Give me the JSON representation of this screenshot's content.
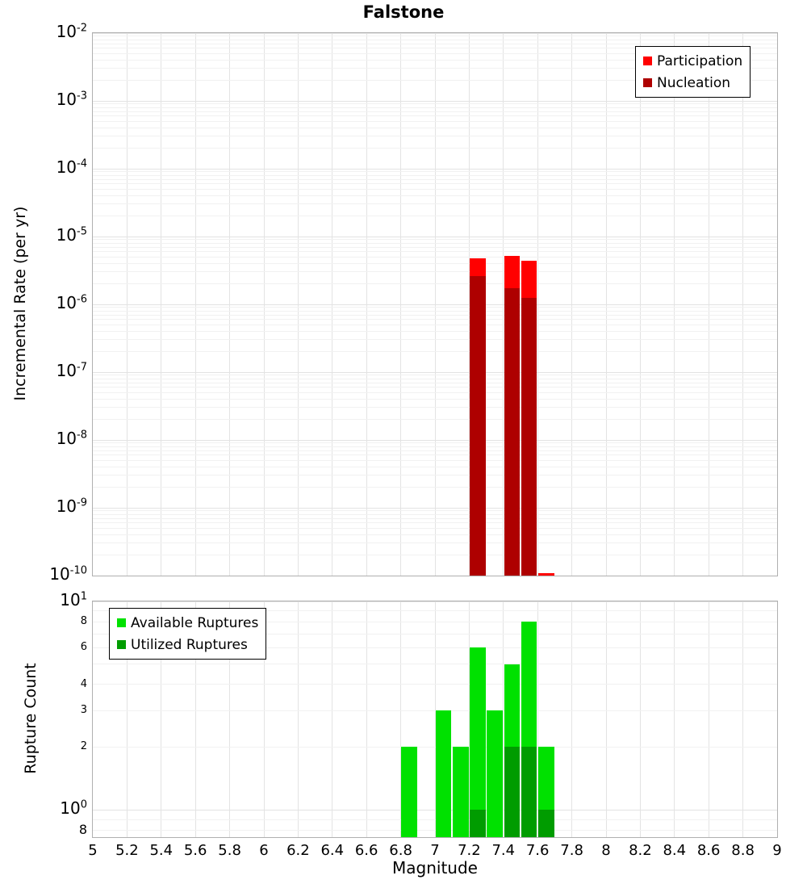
{
  "title": "Falstone",
  "colors": {
    "participation": "#ff0000",
    "nucleation": "#ae0000",
    "available": "#00e100",
    "utilized": "#009c00",
    "grid_major": "#e3e3e3",
    "grid_minor": "#f1f1f1",
    "panel_border": "#b0b0b0"
  },
  "x_axis": {
    "label": "Magnitude",
    "min": 5,
    "max": 9,
    "tick_labels": [
      "5",
      "5.2",
      "5.4",
      "5.6",
      "5.8",
      "6",
      "6.2",
      "6.4",
      "6.6",
      "6.8",
      "7",
      "7.2",
      "7.4",
      "7.6",
      "7.8",
      "8",
      "8.2",
      "8.4",
      "8.6",
      "8.8",
      "9"
    ]
  },
  "top_panel": {
    "ylabel": "Incremental Rate (per yr)",
    "yscale": "log",
    "ymin": 1e-10,
    "ymax": 0.01,
    "major_tick_exponents": [
      -2,
      -3,
      -4,
      -5,
      -6,
      -7,
      -8,
      -9,
      -10
    ],
    "legend": [
      {
        "label": "Participation",
        "color": "#ff0000"
      },
      {
        "label": "Nucleation",
        "color": "#ae0000"
      }
    ]
  },
  "bottom_panel": {
    "ylabel": "Rupture Count",
    "yscale": "log",
    "ymin": 0.74,
    "ymax": 10,
    "major_ticks": [
      {
        "base": "10",
        "exp": "1",
        "value": 10
      },
      {
        "base": "10",
        "exp": "0",
        "value": 1
      }
    ],
    "minor_tick_labels": [
      {
        "label": "8",
        "value": 8
      },
      {
        "label": "6",
        "value": 6
      },
      {
        "label": "4",
        "value": 4
      },
      {
        "label": "3",
        "value": 3
      },
      {
        "label": "2",
        "value": 2
      },
      {
        "label": "8",
        "value": 0.8,
        "large": true
      }
    ],
    "legend": [
      {
        "label": "Available Ruptures",
        "color": "#00e100"
      },
      {
        "label": "Utilized Ruptures",
        "color": "#009c00"
      }
    ]
  },
  "chart_data": [
    {
      "type": "bar",
      "panel": "top",
      "title": "Falstone",
      "xlabel": "Magnitude",
      "ylabel": "Incremental Rate (per yr)",
      "yscale": "log",
      "ylim": [
        1e-10,
        0.01
      ],
      "xlim": [
        5,
        9
      ],
      "bin_width": 0.1,
      "grid": true,
      "legend_position": "top-right",
      "x": [
        7.25,
        7.45,
        7.55,
        7.65
      ],
      "series": [
        {
          "name": "Participation",
          "color": "#ff0000",
          "values": [
            4.8e-06,
            5.2e-06,
            4.4e-06,
            1.1e-10
          ]
        },
        {
          "name": "Nucleation",
          "color": "#ae0000",
          "values": [
            2.6e-06,
            1.75e-06,
            1.25e-06,
            null
          ]
        }
      ]
    },
    {
      "type": "bar",
      "panel": "bottom",
      "xlabel": "Magnitude",
      "ylabel": "Rupture Count",
      "yscale": "log",
      "ylim": [
        0.74,
        10
      ],
      "xlim": [
        5,
        9
      ],
      "bin_width": 0.1,
      "grid": true,
      "legend_position": "top-left",
      "x": [
        6.85,
        7.05,
        7.15,
        7.25,
        7.35,
        7.45,
        7.55,
        7.65
      ],
      "series": [
        {
          "name": "Available Ruptures",
          "color": "#00e100",
          "values": [
            2,
            3,
            2,
            6,
            3,
            5,
            8,
            2
          ]
        },
        {
          "name": "Utilized Ruptures",
          "color": "#009c00",
          "values": [
            null,
            null,
            null,
            1,
            null,
            2,
            2,
            1
          ]
        }
      ]
    }
  ]
}
